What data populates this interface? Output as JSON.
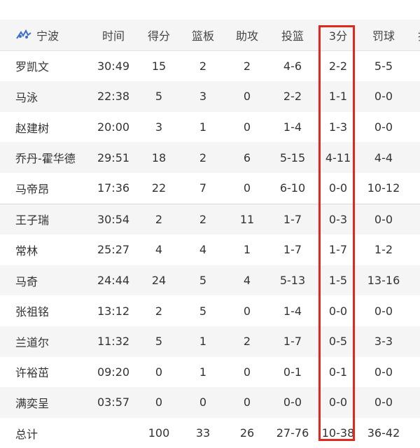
{
  "team": {
    "name": "宁波",
    "icon": "team-logo-icon"
  },
  "columns": [
    "时间",
    "得分",
    "篮板",
    "助攻",
    "投篮",
    "3分",
    "罚球",
    "抢"
  ],
  "players": [
    [
      "罗凯文",
      "30:49",
      "15",
      "2",
      "2",
      "4-6",
      "2-2",
      "5-5"
    ],
    [
      "马泳",
      "22:38",
      "5",
      "3",
      "0",
      "2-2",
      "1-1",
      "0-0"
    ],
    [
      "赵建树",
      "20:00",
      "3",
      "1",
      "0",
      "1-4",
      "1-3",
      "0-0"
    ],
    [
      "乔丹-霍华德",
      "29:51",
      "18",
      "2",
      "6",
      "5-15",
      "4-11",
      "4-4"
    ],
    [
      "马帝昂",
      "17:36",
      "22",
      "7",
      "0",
      "6-10",
      "0-0",
      "10-12"
    ],
    [
      "王子瑞",
      "30:54",
      "2",
      "2",
      "11",
      "1-7",
      "0-3",
      "0-0"
    ],
    [
      "常林",
      "25:27",
      "4",
      "4",
      "1",
      "1-7",
      "1-7",
      "1-2"
    ],
    [
      "马奇",
      "24:44",
      "24",
      "5",
      "4",
      "5-13",
      "1-5",
      "13-16"
    ],
    [
      "张祖铭",
      "13:12",
      "2",
      "5",
      "0",
      "1-4",
      "0-0",
      "0-0"
    ],
    [
      "兰道尔",
      "11:32",
      "5",
      "1",
      "2",
      "1-7",
      "0-5",
      "3-3"
    ],
    [
      "许裕茁",
      "09:20",
      "0",
      "1",
      "0",
      "0-1",
      "0-1",
      "0-0"
    ],
    [
      "满奕呈",
      "03:57",
      "0",
      "0",
      "0",
      "0-0",
      "0-0",
      "0-0"
    ]
  ],
  "totals": [
    "总计",
    "",
    "100",
    "33",
    "26",
    "27-76",
    "10-38",
    "36-42"
  ],
  "highlight_color": "#e0281e"
}
